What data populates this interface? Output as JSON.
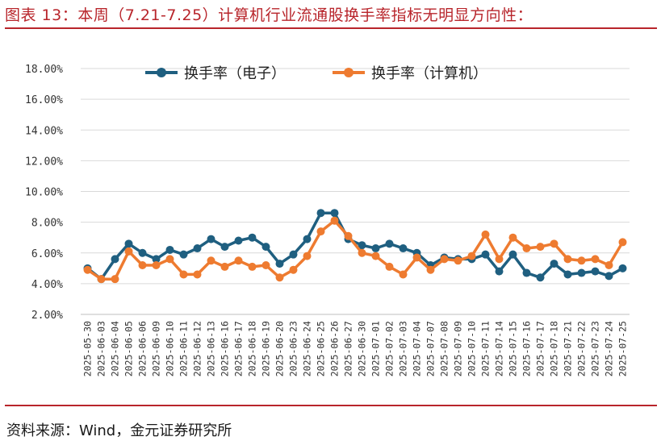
{
  "header": {
    "title": "图表 13：本周（7.21-7.25）计算机行业流通股换手率指标无明显方向性："
  },
  "footer": {
    "source": "资料来源：Wind，金元证券研究所"
  },
  "colors": {
    "accent_red": "#b8252b",
    "series_electronics": "#1f5f80",
    "series_computer": "#ee7b30",
    "grid": "#d9d9d9"
  },
  "chart_data": {
    "type": "line",
    "ylim": [
      2,
      18
    ],
    "y_ticks": [
      "2.00%",
      "4.00%",
      "6.00%",
      "8.00%",
      "10.00%",
      "12.00%",
      "14.00%",
      "16.00%",
      "18.00%"
    ],
    "y_tick_values": [
      2,
      4,
      6,
      8,
      10,
      12,
      14,
      16,
      18
    ],
    "y_unit": "%",
    "grid": "horizontal",
    "legend_position": "top-center",
    "categories": [
      "2025-05-30",
      "2025-06-03",
      "2025-06-04",
      "2025-06-05",
      "2025-06-06",
      "2025-06-09",
      "2025-06-10",
      "2025-06-11",
      "2025-06-12",
      "2025-06-13",
      "2025-06-16",
      "2025-06-17",
      "2025-06-18",
      "2025-06-19",
      "2025-06-20",
      "2025-06-23",
      "2025-06-24",
      "2025-06-25",
      "2025-06-26",
      "2025-06-27",
      "2025-06-30",
      "2025-07-01",
      "2025-07-02",
      "2025-07-03",
      "2025-07-04",
      "2025-07-07",
      "2025-07-08",
      "2025-07-09",
      "2025-07-10",
      "2025-07-11",
      "2025-07-14",
      "2025-07-15",
      "2025-07-16",
      "2025-07-17",
      "2025-07-18",
      "2025-07-21",
      "2025-07-22",
      "2025-07-23",
      "2025-07-24",
      "2025-07-25"
    ],
    "series": [
      {
        "name": "换手率（电子）",
        "values": [
          5.0,
          4.3,
          5.6,
          6.6,
          6.0,
          5.6,
          6.2,
          5.9,
          6.3,
          6.9,
          6.4,
          6.8,
          7.0,
          6.4,
          5.3,
          5.9,
          6.9,
          8.6,
          8.6,
          6.9,
          6.5,
          6.3,
          6.6,
          6.3,
          6.0,
          5.2,
          5.7,
          5.6,
          5.6,
          5.9,
          4.8,
          5.9,
          4.7,
          4.4,
          5.3,
          4.6,
          4.7,
          4.8,
          4.5,
          5.0
        ]
      },
      {
        "name": "换手率（计算机）",
        "values": [
          4.9,
          4.3,
          4.3,
          6.1,
          5.2,
          5.2,
          5.6,
          4.6,
          4.6,
          5.5,
          5.1,
          5.5,
          5.1,
          5.2,
          4.4,
          4.9,
          5.8,
          7.4,
          8.1,
          7.1,
          6.0,
          5.8,
          5.1,
          4.6,
          5.7,
          4.9,
          5.6,
          5.5,
          5.8,
          7.2,
          5.6,
          7.0,
          6.3,
          6.4,
          6.6,
          5.6,
          5.5,
          5.6,
          5.2,
          6.7
        ]
      }
    ]
  }
}
